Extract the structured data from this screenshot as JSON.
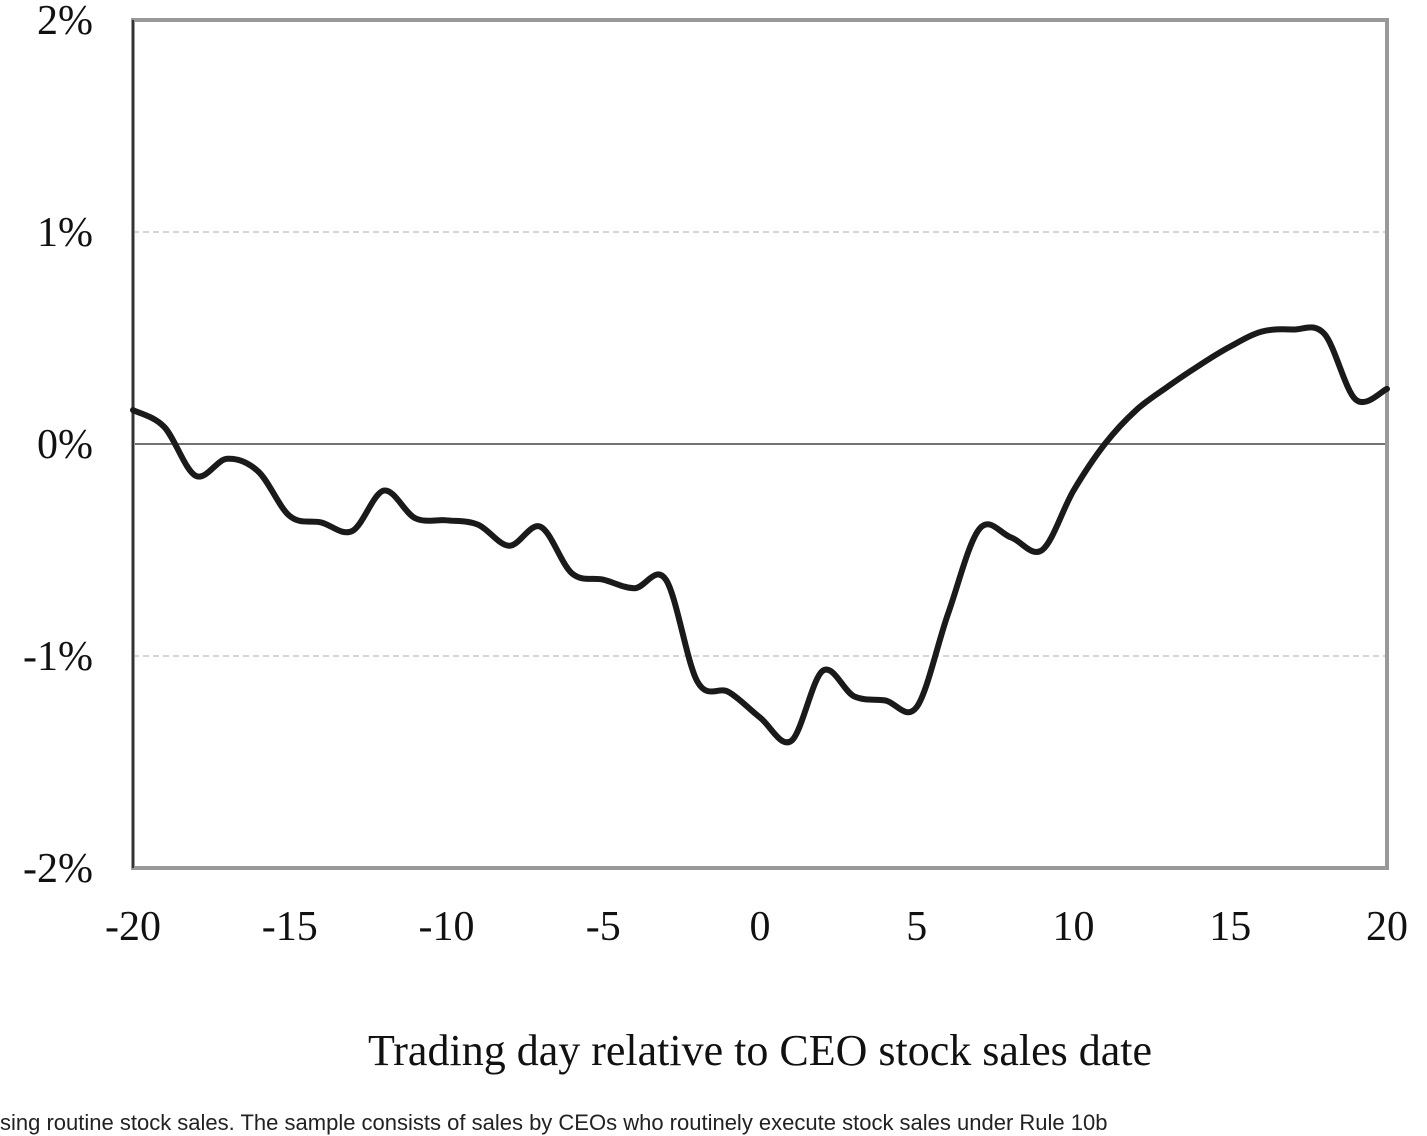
{
  "chart_data": {
    "type": "line",
    "title": "",
    "xlabel": "Trading day relative to CEO stock sales date",
    "ylabel": "",
    "xlim": [
      -20,
      20
    ],
    "ylim": [
      -2,
      2
    ],
    "xticks": [
      -20,
      -15,
      -10,
      -5,
      0,
      5,
      10,
      15,
      20
    ],
    "yticks": [
      -2,
      -1,
      0,
      1,
      2
    ],
    "ytick_labels": [
      "-2%",
      "-1%",
      "0%",
      "1%",
      "2%"
    ],
    "xtick_labels": [
      "-20",
      "-15",
      "-10",
      "-5",
      "0",
      "5",
      "10",
      "15",
      "20"
    ],
    "grid": "horizontal dashed at ±1%",
    "zero_line": true,
    "series": [
      {
        "color": "#1a1a1a",
        "x": [
          -20,
          -19,
          -18,
          -17,
          -16,
          -15,
          -14,
          -13,
          -12,
          -11,
          -10,
          -9,
          -8,
          -7,
          -6,
          -5,
          -4,
          -3,
          -2,
          -1,
          0,
          1,
          2,
          3,
          4,
          5,
          6,
          7,
          8,
          9,
          10,
          11,
          12,
          13,
          14,
          15,
          16,
          17,
          18,
          19,
          20
        ],
        "values": [
          0.16,
          0.08,
          -0.15,
          -0.07,
          -0.13,
          -0.34,
          -0.37,
          -0.41,
          -0.22,
          -0.35,
          -0.36,
          -0.38,
          -0.48,
          -0.39,
          -0.61,
          -0.64,
          -0.68,
          -0.64,
          -1.12,
          -1.17,
          -1.29,
          -1.4,
          -1.07,
          -1.19,
          -1.21,
          -1.24,
          -0.8,
          -0.4,
          -0.44,
          -0.5,
          -0.22,
          0.0,
          0.16,
          0.27,
          0.37,
          0.46,
          0.53,
          0.54,
          0.52,
          0.21,
          0.26
        ]
      }
    ]
  },
  "caption": "sing routine stock sales. The sample consists of sales by CEOs who routinely execute stock sales under Rule 10b"
}
